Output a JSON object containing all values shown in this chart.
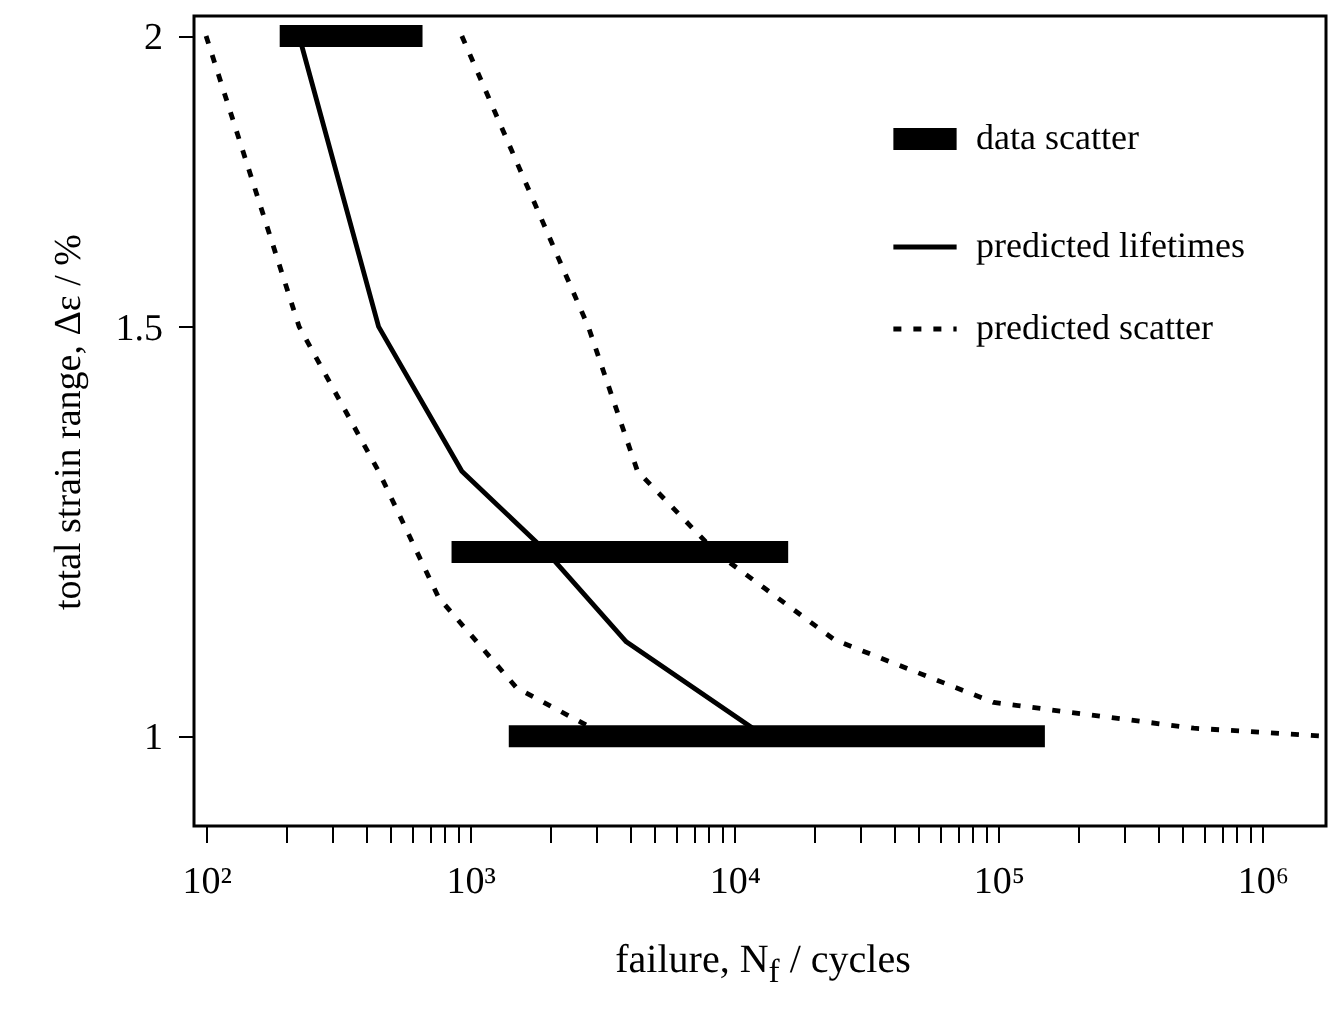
{
  "chart_data": {
    "type": "line",
    "xlabel": "failure, N$_{f}$ / cycles",
    "ylabel": "total strain range, Δε / %",
    "log": "xy",
    "xlim": [
      90,
      1740000
    ],
    "ylim": [
      0.915,
      2.04
    ],
    "xticks": [
      {
        "value": 100,
        "label": "10²"
      },
      {
        "value": 200,
        "label": null
      },
      {
        "value": 300,
        "label": null
      },
      {
        "value": 400,
        "label": null
      },
      {
        "value": 500,
        "label": null
      },
      {
        "value": 600,
        "label": null
      },
      {
        "value": 700,
        "label": null
      },
      {
        "value": 800,
        "label": null
      },
      {
        "value": 900,
        "label": null
      },
      {
        "value": 1000,
        "label": "10³"
      },
      {
        "value": 2000,
        "label": null
      },
      {
        "value": 3000,
        "label": null
      },
      {
        "value": 4000,
        "label": null
      },
      {
        "value": 5000,
        "label": null
      },
      {
        "value": 6000,
        "label": null
      },
      {
        "value": 7000,
        "label": null
      },
      {
        "value": 8000,
        "label": null
      },
      {
        "value": 9000,
        "label": null
      },
      {
        "value": 10000,
        "label": "10⁴"
      },
      {
        "value": 20000,
        "label": null
      },
      {
        "value": 30000,
        "label": null
      },
      {
        "value": 40000,
        "label": null
      },
      {
        "value": 50000,
        "label": null
      },
      {
        "value": 60000,
        "label": null
      },
      {
        "value": 70000,
        "label": null
      },
      {
        "value": 80000,
        "label": null
      },
      {
        "value": 90000,
        "label": null
      },
      {
        "value": 100000,
        "label": "10⁵"
      },
      {
        "value": 200000,
        "label": null
      },
      {
        "value": 300000,
        "label": null
      },
      {
        "value": 400000,
        "label": null
      },
      {
        "value": 500000,
        "label": null
      },
      {
        "value": 600000,
        "label": null
      },
      {
        "value": 700000,
        "label": null
      },
      {
        "value": 800000,
        "label": null
      },
      {
        "value": 900000,
        "label": null
      },
      {
        "value": 1000000,
        "label": "10⁶"
      }
    ],
    "yticks": [
      1,
      1.5,
      2
    ],
    "grid": false,
    "legend": "top right",
    "marker": "none",
    "series": [
      {
        "name": "data scatter",
        "color": "#000000",
        "line_style": "solid",
        "x": [
          190,
          660
        ],
        "values": [
          2,
          2
        ]
      },
      {
        "color": "#000000",
        "line_style": "solid",
        "x": [
          850,
          16000
        ],
        "values": [
          1.2,
          1.2
        ]
      },
      {
        "color": "#000000",
        "line_style": "solid",
        "x": [
          1400,
          150000
        ],
        "values": [
          1,
          1
        ]
      },
      {
        "name": "predicted lifetimes",
        "color": "#000000",
        "line_style": "solid",
        "x": [
          225,
          450,
          930,
          1950,
          3900,
          13000
        ],
        "values": [
          2,
          1.5,
          1.3,
          1.2,
          1.098,
          1
        ]
      },
      {
        "name": "predicted scatter",
        "color": "#000000",
        "line_style": "dashed",
        "x": [
          100,
          225,
          450,
          760,
          1500,
          3300
        ],
        "values": [
          2,
          1.5,
          1.3,
          1.147,
          1.049,
          1
        ]
      },
      {
        "color": "#000000",
        "line_style": "dashed",
        "x": [
          930,
          2800,
          4300,
          8500,
          24000,
          96000,
          550000,
          1740000
        ],
        "values": [
          2,
          1.5,
          1.3,
          1.2,
          1.1,
          1.034,
          1.008,
          1
        ]
      }
    ]
  }
}
